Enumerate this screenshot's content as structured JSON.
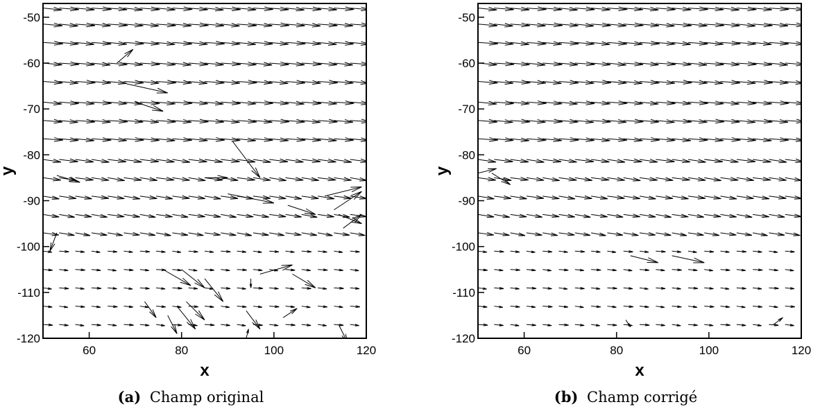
{
  "chart_data": [
    {
      "type": "vector-field",
      "panel_tag": "(a)",
      "caption": "Champ original",
      "xlabel": "x",
      "ylabel": "y",
      "xlim": [
        50,
        120
      ],
      "ylim": [
        -120,
        -47
      ],
      "xticks": [
        60,
        80,
        100,
        120
      ],
      "yticks": [
        -50,
        -60,
        -70,
        -80,
        -90,
        -100,
        -110,
        -120
      ],
      "grid": false,
      "rows_y": [
        -48,
        -51.5,
        -55.5,
        -60,
        -64,
        -68.5,
        -72.5,
        -76.5,
        -81,
        -85,
        -89,
        -93,
        -97,
        -101,
        -105,
        -109,
        -113,
        -117
      ],
      "columns_x": [
        50,
        53.5,
        57,
        60.5,
        64,
        67.5,
        71,
        74.5,
        78,
        81.5,
        85,
        88.5,
        92,
        95.5,
        99,
        102.5,
        106,
        109.5,
        113,
        116.5,
        120
      ],
      "outliers": [
        {
          "x": 66,
          "y": -60,
          "u": 3.5,
          "v": 3
        },
        {
          "x": 68,
          "y": -64.5,
          "u": 9,
          "v": -2
        },
        {
          "x": 70,
          "y": -68.5,
          "u": 6,
          "v": -2
        },
        {
          "x": 91,
          "y": -77,
          "u": 6,
          "v": -8
        },
        {
          "x": 53,
          "y": -84.5,
          "u": 5,
          "v": -1.5
        },
        {
          "x": 85,
          "y": -85,
          "u": 5,
          "v": 0
        },
        {
          "x": 53,
          "y": -97,
          "u": -1.5,
          "v": -4
        },
        {
          "x": 90,
          "y": -88.5,
          "u": 10,
          "v": -2
        },
        {
          "x": 103,
          "y": -91,
          "u": 6,
          "v": -2
        },
        {
          "x": 111,
          "y": -89,
          "u": 8,
          "v": 2
        },
        {
          "x": 113,
          "y": -92,
          "u": 6,
          "v": 4
        },
        {
          "x": 115,
          "y": -96,
          "u": 4,
          "v": 3
        },
        {
          "x": 114,
          "y": -93,
          "u": 5,
          "v": -2
        },
        {
          "x": 76,
          "y": -105,
          "u": 6,
          "v": -3.5
        },
        {
          "x": 80,
          "y": -105,
          "u": 5,
          "v": -4
        },
        {
          "x": 85,
          "y": -107,
          "u": 4,
          "v": -5
        },
        {
          "x": 95,
          "y": -107,
          "u": 0,
          "v": -2
        },
        {
          "x": 97,
          "y": -106,
          "u": 7,
          "v": 2
        },
        {
          "x": 104,
          "y": -106,
          "u": 5,
          "v": -3
        },
        {
          "x": 72,
          "y": -112,
          "u": 2.5,
          "v": -3.5
        },
        {
          "x": 81,
          "y": -112,
          "u": 4,
          "v": -4
        },
        {
          "x": 94,
          "y": -114,
          "u": 3,
          "v": -4
        },
        {
          "x": 102,
          "y": -115.5,
          "u": 3,
          "v": 2
        },
        {
          "x": 79,
          "y": -113,
          "u": 4,
          "v": -5
        },
        {
          "x": 77,
          "y": -115,
          "u": 2,
          "v": -4
        },
        {
          "x": 114,
          "y": -117,
          "u": 2,
          "v": -4
        },
        {
          "x": 94,
          "y": -120,
          "u": 0.5,
          "v": 2
        }
      ]
    },
    {
      "type": "vector-field",
      "panel_tag": "(b)",
      "caption": "Champ corrigé",
      "xlabel": "x",
      "ylabel": "y",
      "xlim": [
        50,
        120
      ],
      "ylim": [
        -120,
        -47
      ],
      "xticks": [
        60,
        80,
        100,
        120
      ],
      "yticks": [
        -50,
        -60,
        -70,
        -80,
        -90,
        -100,
        -110,
        -120
      ],
      "grid": false,
      "rows_y": [
        -48,
        -51.5,
        -55.5,
        -60,
        -64,
        -68.5,
        -72.5,
        -76.5,
        -81,
        -85,
        -89,
        -93,
        -97,
        -101,
        -105,
        -109,
        -113,
        -117
      ],
      "columns_x": [
        50,
        53.5,
        57,
        60.5,
        64,
        67.5,
        71,
        74.5,
        78,
        81.5,
        85,
        88.5,
        92,
        95.5,
        99,
        102.5,
        106,
        109.5,
        113,
        116.5,
        120
      ],
      "outliers": [
        {
          "x": 50,
          "y": -84,
          "u": 4,
          "v": 1
        },
        {
          "x": 53,
          "y": -84,
          "u": 4,
          "v": -2.5
        },
        {
          "x": 83,
          "y": -102,
          "u": 6,
          "v": -1.5
        },
        {
          "x": 92,
          "y": -102,
          "u": 7,
          "v": -1.5
        },
        {
          "x": 82,
          "y": -116,
          "u": 1,
          "v": -1.5
        },
        {
          "x": 114,
          "y": -117,
          "u": 2,
          "v": 1.5
        }
      ]
    }
  ]
}
